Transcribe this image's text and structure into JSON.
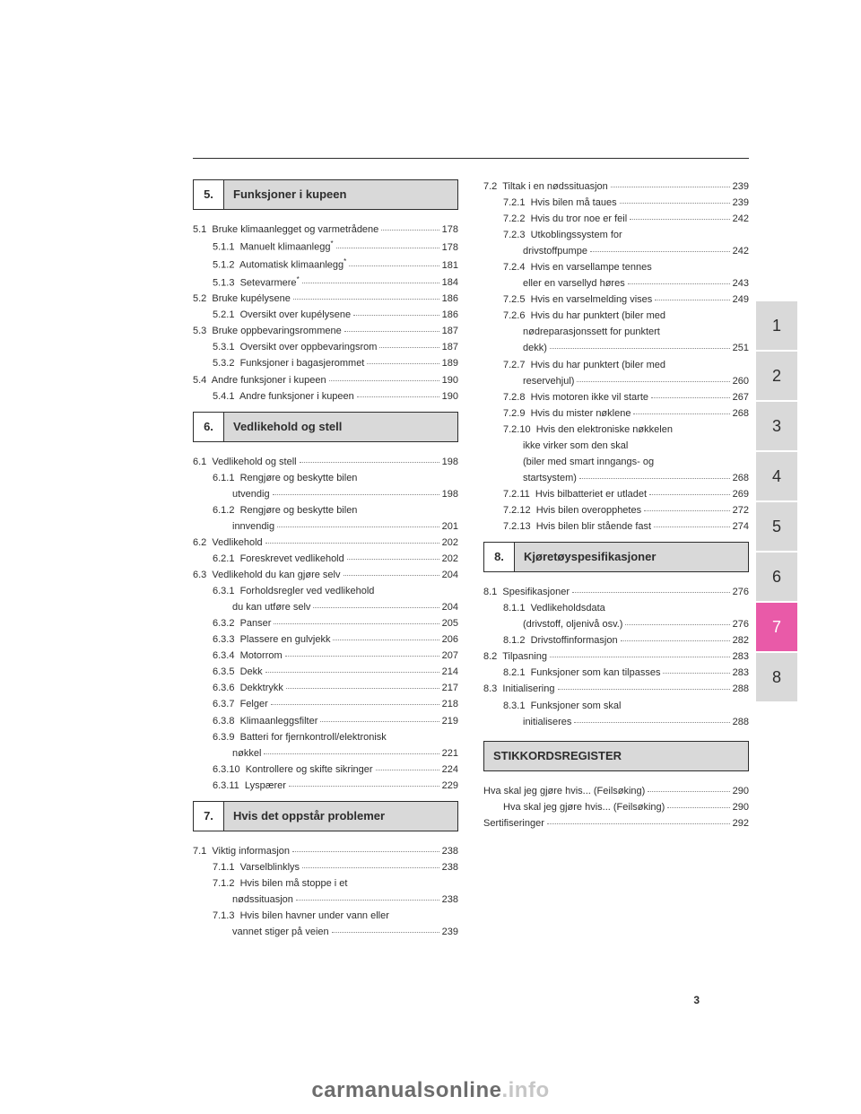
{
  "page_number": "3",
  "footer": {
    "dark": "carmanualsonline",
    "light": ".info"
  },
  "side_tabs": [
    {
      "n": "1",
      "style": "gray"
    },
    {
      "n": "2",
      "style": "gray"
    },
    {
      "n": "3",
      "style": "gray"
    },
    {
      "n": "4",
      "style": "gray"
    },
    {
      "n": "5",
      "style": "gray"
    },
    {
      "n": "6",
      "style": "gray"
    },
    {
      "n": "7",
      "style": "pink"
    },
    {
      "n": "8",
      "style": "gray"
    }
  ],
  "left": {
    "sections": [
      {
        "num": "5.",
        "title": "Funksjoner i kupeen",
        "first": true,
        "rows": [
          {
            "lvl": 1,
            "label": "5.1  Bruke klimaanlegget og varmetrådene",
            "pg": "178"
          },
          {
            "lvl": 2,
            "label": "5.1.1  Manuelt klimaanlegg*",
            "pg": "178",
            "sup": true
          },
          {
            "lvl": 2,
            "label": "5.1.2  Automatisk klimaanlegg*",
            "pg": "181",
            "sup": true
          },
          {
            "lvl": 2,
            "label": "5.1.3  Setevarmere*",
            "pg": "184",
            "sup": true
          },
          {
            "lvl": 1,
            "label": "5.2  Bruke kupélysene",
            "pg": "186"
          },
          {
            "lvl": 2,
            "label": "5.2.1  Oversikt over kupélysene",
            "pg": "186"
          },
          {
            "lvl": 1,
            "label": "5.3  Bruke oppbevaringsrommene",
            "pg": "187"
          },
          {
            "lvl": 2,
            "label": "5.3.1  Oversikt over oppbevaringsrom",
            "pg": "187"
          },
          {
            "lvl": 2,
            "label": "5.3.2  Funksjoner i bagasjerommet",
            "pg": "189"
          },
          {
            "lvl": 1,
            "label": "5.4  Andre funksjoner i kupeen",
            "pg": "190"
          },
          {
            "lvl": 2,
            "label": "5.4.1  Andre funksjoner i kupeen",
            "pg": "190"
          }
        ]
      },
      {
        "num": "6.",
        "title": "Vedlikehold og stell",
        "rows": [
          {
            "lvl": 1,
            "label": "6.1  Vedlikehold og stell",
            "pg": "198"
          },
          {
            "lvl": 2,
            "label": "6.1.1  Rengjøre og beskytte bilen",
            "pg": "",
            "cont": "utvendig",
            "cpg": "198"
          },
          {
            "lvl": 2,
            "label": "6.1.2  Rengjøre og beskytte bilen",
            "pg": "",
            "cont": "innvendig",
            "cpg": "201"
          },
          {
            "lvl": 1,
            "label": "6.2  Vedlikehold",
            "pg": "202"
          },
          {
            "lvl": 2,
            "label": "6.2.1  Foreskrevet vedlikehold",
            "pg": "202"
          },
          {
            "lvl": 1,
            "label": "6.3  Vedlikehold du kan gjøre selv",
            "pg": "204"
          },
          {
            "lvl": 2,
            "label": "6.3.1  Forholdsregler ved vedlikehold",
            "pg": "",
            "cont": "du kan utføre selv",
            "cpg": "204"
          },
          {
            "lvl": 2,
            "label": "6.3.2  Panser",
            "pg": "205"
          },
          {
            "lvl": 2,
            "label": "6.3.3  Plassere en gulvjekk",
            "pg": "206"
          },
          {
            "lvl": 2,
            "label": "6.3.4  Motorrom",
            "pg": "207"
          },
          {
            "lvl": 2,
            "label": "6.3.5  Dekk",
            "pg": "214"
          },
          {
            "lvl": 2,
            "label": "6.3.6  Dekktrykk",
            "pg": "217"
          },
          {
            "lvl": 2,
            "label": "6.3.7  Felger",
            "pg": "218"
          },
          {
            "lvl": 2,
            "label": "6.3.8  Klimaanleggsfilter",
            "pg": "219"
          },
          {
            "lvl": 2,
            "label": "6.3.9  Batteri for fjernkontroll/elektronisk",
            "pg": "",
            "cont": "nøkkel",
            "cpg": "221"
          },
          {
            "lvl": 2,
            "label": "6.3.10  Kontrollere og skifte sikringer",
            "pg": "224"
          },
          {
            "lvl": 2,
            "label": "6.3.11  Lyspærer",
            "pg": "229"
          }
        ]
      },
      {
        "num": "7.",
        "title": "Hvis det oppstår problemer",
        "rows": [
          {
            "lvl": 1,
            "label": "7.1  Viktig informasjon",
            "pg": "238"
          },
          {
            "lvl": 2,
            "label": "7.1.1  Varselblinklys",
            "pg": "238"
          },
          {
            "lvl": 2,
            "label": "7.1.2  Hvis bilen må stoppe i et",
            "pg": "",
            "cont": "nødssituasjon",
            "cpg": "238"
          },
          {
            "lvl": 2,
            "label": "7.1.3  Hvis bilen havner under vann eller",
            "pg": "",
            "cont": "vannet stiger på veien",
            "cpg": "239"
          }
        ]
      }
    ]
  },
  "right": {
    "plain_rows_top": [
      {
        "lvl": 1,
        "label": "7.2  Tiltak i en nødssituasjon",
        "pg": "239"
      },
      {
        "lvl": 2,
        "label": "7.2.1  Hvis bilen må taues",
        "pg": "239"
      },
      {
        "lvl": 2,
        "label": "7.2.2  Hvis du tror noe er feil",
        "pg": "242"
      },
      {
        "lvl": 2,
        "label": "7.2.3  Utkoblingssystem for",
        "pg": "",
        "cont": "drivstoffpumpe",
        "cpg": "242"
      },
      {
        "lvl": 2,
        "label": "7.2.4  Hvis en varsellampe tennes",
        "pg": "",
        "cont": "eller en varsellyd høres",
        "cpg": "243"
      },
      {
        "lvl": 2,
        "label": "7.2.5  Hvis en varselmelding vises",
        "pg": "249"
      },
      {
        "lvl": 2,
        "label": "7.2.6  Hvis du har punktert (biler med",
        "pg": "",
        "cont": "nødreparasjonssett for punktert",
        "cont2": "dekk)",
        "cpg": "251"
      },
      {
        "lvl": 2,
        "label": "7.2.7  Hvis du har punktert (biler med",
        "pg": "",
        "cont": "reservehjul)",
        "cpg": "260"
      },
      {
        "lvl": 2,
        "label": "7.2.8  Hvis motoren ikke vil starte",
        "pg": "267"
      },
      {
        "lvl": 2,
        "label": "7.2.9  Hvis du mister nøklene",
        "pg": "268"
      },
      {
        "lvl": 2,
        "label": "7.2.10  Hvis den elektroniske nøkkelen",
        "pg": "",
        "cont": "ikke virker som den skal",
        "cont2": "(biler med smart inngangs- og",
        "cont3": "startsystem)",
        "cpg": "268"
      },
      {
        "lvl": 2,
        "label": "7.2.11  Hvis bilbatteriet er utladet",
        "pg": "269"
      },
      {
        "lvl": 2,
        "label": "7.2.12  Hvis bilen overopphetes",
        "pg": "272"
      },
      {
        "lvl": 2,
        "label": "7.2.13  Hvis bilen blir stående fast",
        "pg": "274"
      }
    ],
    "sections": [
      {
        "num": "8.",
        "title": "Kjøretøyspesifikasjoner",
        "rows": [
          {
            "lvl": 1,
            "label": "8.1  Spesifikasjoner",
            "pg": "276"
          },
          {
            "lvl": 2,
            "label": "8.1.1  Vedlikeholdsdata",
            "pg": "",
            "cont": "(drivstoff, oljenivå osv.)",
            "cpg": "276"
          },
          {
            "lvl": 2,
            "label": "8.1.2  Drivstoffinformasjon",
            "pg": "282"
          },
          {
            "lvl": 1,
            "label": "8.2  Tilpasning",
            "pg": "283"
          },
          {
            "lvl": 2,
            "label": "8.2.1  Funksjoner som kan tilpasses",
            "pg": "283"
          },
          {
            "lvl": 1,
            "label": "8.3  Initialisering",
            "pg": "288"
          },
          {
            "lvl": 2,
            "label": "8.3.1  Funksjoner som skal",
            "pg": "",
            "cont": "initialiseres",
            "cpg": "288"
          }
        ]
      }
    ],
    "index_title": "STIKKORDSREGISTER",
    "index_rows": [
      {
        "lvl": 1,
        "label": "Hva skal jeg gjøre hvis... (Feilsøking)",
        "pg": "290"
      },
      {
        "lvl": 3,
        "label": "Hva skal jeg gjøre hvis... (Feilsøking)",
        "pg": "290"
      },
      {
        "lvl": 1,
        "label": "Sertifiseringer",
        "pg": "292"
      }
    ]
  }
}
